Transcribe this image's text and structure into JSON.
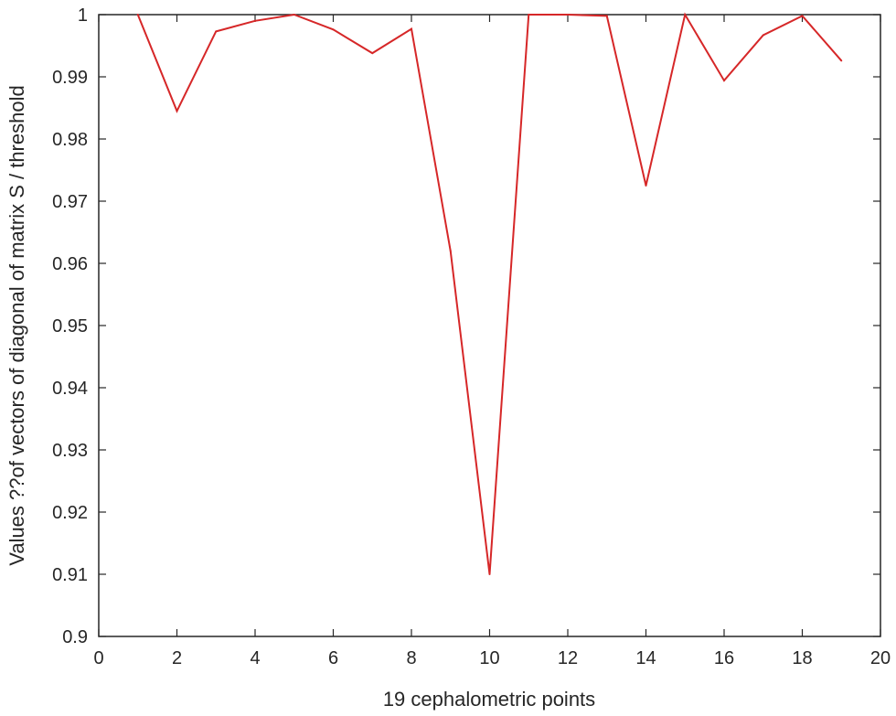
{
  "chart_data": {
    "type": "line",
    "title": "",
    "xlabel": "19 cephalometric points",
    "ylabel": "Values ??of vectors of diagonal of matrix S / threshold",
    "xlim": [
      0,
      20
    ],
    "ylim": [
      0.9,
      1.0
    ],
    "x_ticks": [
      0,
      2,
      4,
      6,
      8,
      10,
      12,
      14,
      16,
      18,
      20
    ],
    "y_ticks": [
      0.9,
      0.91,
      0.92,
      0.93,
      0.94,
      0.95,
      0.96,
      0.97,
      0.98,
      0.99,
      1
    ],
    "grid": false,
    "legend": "none",
    "series": [
      {
        "color": "#d62728",
        "x": [
          1,
          2,
          3,
          4,
          5,
          6,
          7,
          8,
          9,
          10,
          11,
          12,
          13,
          14,
          15,
          16,
          17,
          18,
          19
        ],
        "values": [
          1.0,
          0.9845,
          0.9973,
          0.999,
          1.0,
          0.9976,
          0.9938,
          0.9977,
          0.962,
          0.91,
          1.0,
          1.0,
          0.9998,
          0.9725,
          1.0,
          0.9894,
          0.9967,
          0.9998,
          0.9926
        ]
      }
    ]
  }
}
